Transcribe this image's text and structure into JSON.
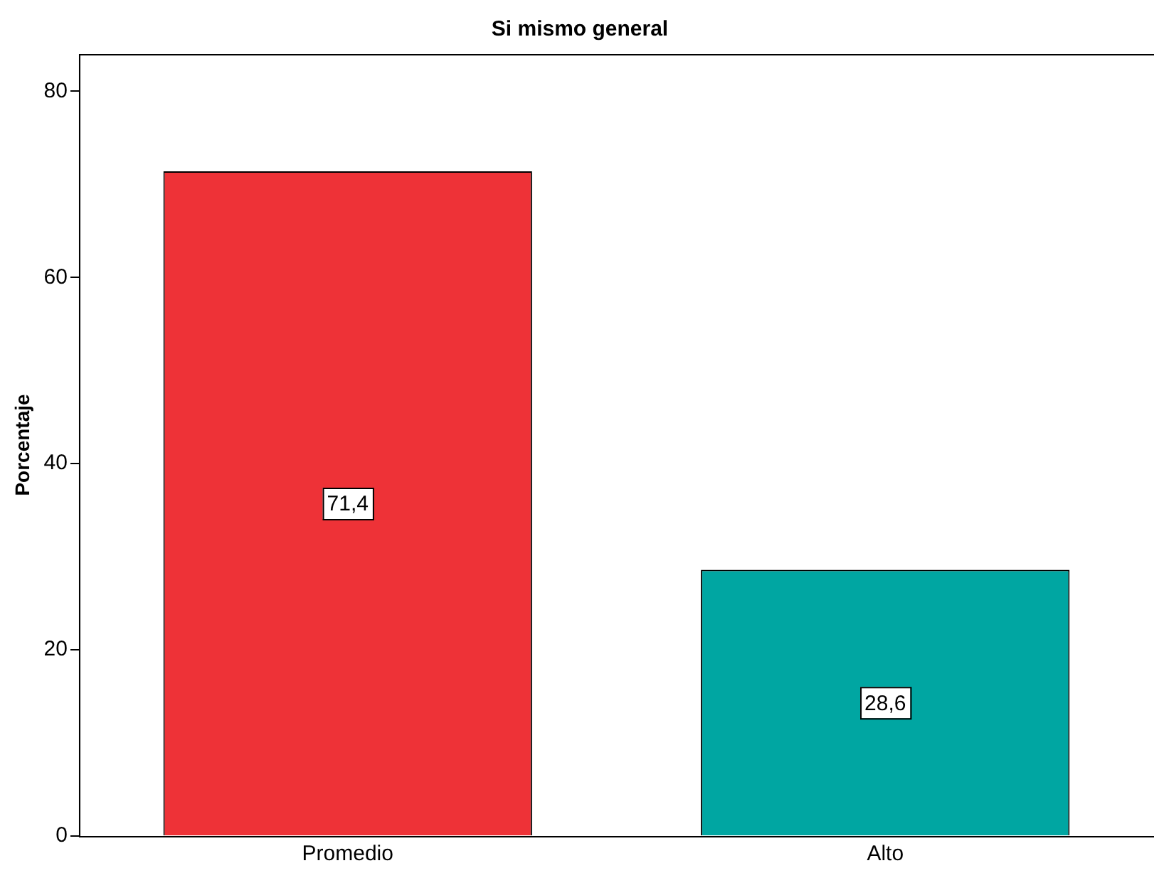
{
  "chart_data": {
    "type": "bar",
    "title": "Si mismo general",
    "ylabel": "Porcentaje",
    "categories": [
      "Promedio",
      "Alto"
    ],
    "values": [
      71.4,
      28.6
    ],
    "value_labels": [
      "71,4",
      "28,6"
    ],
    "colors": [
      "#ee3237",
      "#00a6a2"
    ],
    "ylim": [
      0,
      84
    ],
    "yticks": [
      0,
      20,
      40,
      60,
      80
    ],
    "grid": false
  }
}
